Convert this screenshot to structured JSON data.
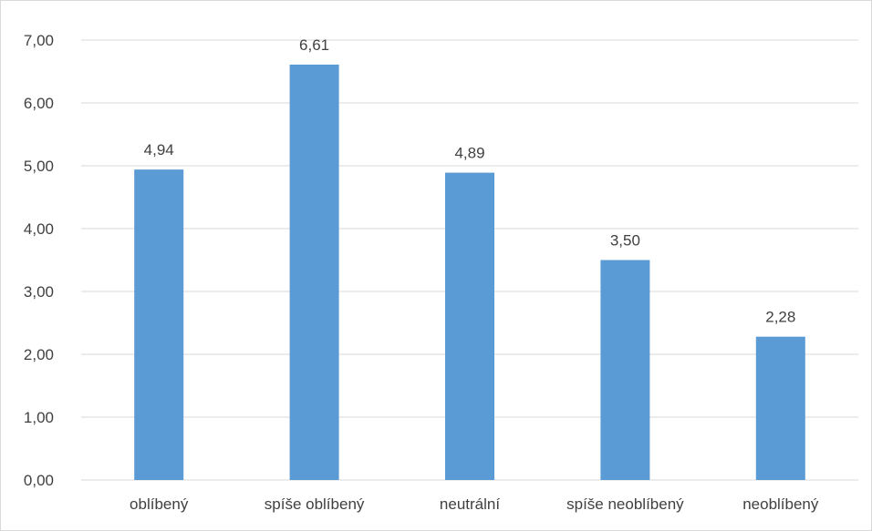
{
  "chart_data": {
    "type": "bar",
    "categories": [
      "oblíbený",
      "spíše oblíbený",
      "neutrální",
      "spíše neoblíbený",
      "neoblíbený"
    ],
    "values": [
      4.94,
      6.61,
      4.89,
      3.5,
      2.28
    ],
    "value_labels": [
      "4,94",
      "6,61",
      "4,89",
      "3,50",
      "2,28"
    ],
    "y_ticks": [
      "0,00",
      "1,00",
      "2,00",
      "3,00",
      "4,00",
      "5,00",
      "6,00",
      "7,00"
    ],
    "ylim": [
      0,
      7
    ],
    "grid": true,
    "legend": "none",
    "bar_color": "#5b9bd5",
    "grid_color": "#d9d9d9",
    "title": "",
    "xlabel": "",
    "ylabel": ""
  }
}
